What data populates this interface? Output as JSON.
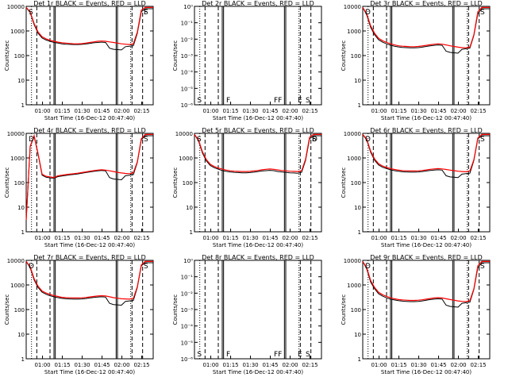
{
  "figure": {
    "xlabel": "Start Time (16-Dec-12 00:47:40)",
    "ylabel": "Counts/sec",
    "xticks": [
      "01:00",
      "01:15",
      "01:30",
      "01:45",
      "02:00",
      "02:15"
    ],
    "colors": {
      "events": "#000000",
      "lld": "#ff0000",
      "background": "#ffffff"
    }
  },
  "chart_data": [
    {
      "type": "line",
      "title": "Det 1r BLACK = Events, RED = LLD",
      "xlabel": "Start Time (16-Dec-12 00:47:40)",
      "ylabel": "Counts/sec",
      "x_unit": "minutes since 00:47:40",
      "xlim": [
        0,
        96
      ],
      "scale": "log",
      "ylim": [
        1,
        10000
      ],
      "yticks": [
        "1",
        "10",
        "100",
        "1000",
        "10000"
      ],
      "x": [
        0,
        3,
        6,
        9,
        12,
        15,
        18,
        21,
        24,
        27,
        30,
        33,
        36,
        39,
        42,
        45,
        48,
        51,
        54,
        57,
        60,
        63,
        66,
        69,
        72,
        75,
        78,
        81,
        84,
        87,
        90,
        93,
        96
      ],
      "series": [
        {
          "name": "LLD",
          "values": [
            9000,
            6000,
            2000,
            900,
            580,
            480,
            420,
            380,
            350,
            330,
            320,
            310,
            300,
            300,
            305,
            320,
            340,
            360,
            380,
            390,
            380,
            360,
            340,
            320,
            300,
            290,
            280,
            300,
            900,
            7000,
            9000,
            9000,
            9000
          ]
        },
        {
          "name": "Events",
          "values": [
            9000,
            5500,
            1800,
            800,
            520,
            430,
            380,
            340,
            320,
            300,
            290,
            285,
            280,
            280,
            285,
            295,
            310,
            330,
            340,
            350,
            340,
            200,
            180,
            175,
            170,
            230,
            240,
            250,
            800,
            6000,
            8000,
            8000,
            8000
          ]
        }
      ],
      "markers": [
        "S",
        "F",
        "S"
      ]
    },
    {
      "type": "line",
      "title": "Det 2r BLACK = Events, RED = LLD",
      "xlabel": "Start Time (16-Dec-12 00:47:40)",
      "ylabel": "Counts/sec",
      "x_unit": "minutes since 00:47:40",
      "xlim": [
        0,
        96
      ],
      "scale": "log",
      "ylim": [
        1e-06,
        1
      ],
      "yticks": [
        "10⁻⁶",
        "10⁻⁵",
        "10⁻⁴",
        "10⁻³",
        "10⁻²",
        "10⁻¹",
        "10⁰"
      ],
      "x": [],
      "series": [],
      "markers": [
        "S",
        "F",
        "FF",
        "E",
        "S"
      ]
    },
    {
      "type": "line",
      "title": "Det 3r BLACK = Events, RED = LLD",
      "xlabel": "Start Time (16-Dec-12 00:47:40)",
      "ylabel": "Counts/sec",
      "x_unit": "minutes since 00:47:40",
      "xlim": [
        0,
        96
      ],
      "scale": "log",
      "ylim": [
        1,
        10000
      ],
      "yticks": [
        "1",
        "10",
        "100",
        "1000",
        "10000"
      ],
      "x": [
        0,
        3,
        6,
        9,
        12,
        15,
        18,
        21,
        24,
        27,
        30,
        33,
        36,
        39,
        42,
        45,
        48,
        51,
        54,
        57,
        60,
        63,
        66,
        69,
        72,
        75,
        78,
        81,
        84,
        87,
        90,
        93,
        96
      ],
      "series": [
        {
          "name": "LLD",
          "values": [
            9000,
            5000,
            1600,
            800,
            500,
            400,
            340,
            300,
            270,
            250,
            240,
            235,
            230,
            230,
            235,
            245,
            260,
            275,
            290,
            300,
            290,
            270,
            250,
            235,
            220,
            210,
            205,
            220,
            700,
            6000,
            9000,
            9000,
            9000
          ]
        },
        {
          "name": "Events",
          "values": [
            9000,
            4500,
            1400,
            700,
            440,
            350,
            300,
            265,
            240,
            225,
            215,
            210,
            205,
            205,
            210,
            220,
            235,
            250,
            260,
            270,
            260,
            150,
            135,
            130,
            125,
            180,
            190,
            200,
            650,
            5000,
            8000,
            8000,
            8000
          ]
        }
      ],
      "markers": [
        "D",
        "S"
      ]
    },
    {
      "type": "line",
      "title": "Det 4r BLACK = Events, RED = LLD",
      "xlabel": "Start Time (16-Dec-12 00:47:40)",
      "ylabel": "Counts/sec",
      "x_unit": "minutes since 00:47:40",
      "xlim": [
        0,
        96
      ],
      "scale": "log",
      "ylim": [
        1,
        10000
      ],
      "yticks": [
        "1",
        "10",
        "100",
        "1000",
        "10000"
      ],
      "x": [
        0,
        3,
        6,
        9,
        12,
        15,
        18,
        21,
        24,
        27,
        30,
        33,
        36,
        39,
        42,
        45,
        48,
        51,
        54,
        57,
        60,
        63,
        66,
        69,
        72,
        75,
        78,
        81,
        84,
        87,
        90,
        93,
        96
      ],
      "series": [
        {
          "name": "LLD",
          "values": [
            3,
            3000,
            8000,
            1500,
            220,
            180,
            170,
            160,
            190,
            200,
            210,
            220,
            230,
            240,
            255,
            270,
            290,
            305,
            320,
            330,
            320,
            300,
            280,
            260,
            245,
            235,
            230,
            250,
            700,
            6000,
            9000,
            9000,
            9000
          ]
        },
        {
          "name": "Events",
          "values": [
            3,
            2800,
            7500,
            1400,
            200,
            165,
            155,
            150,
            175,
            185,
            195,
            205,
            215,
            225,
            240,
            255,
            270,
            285,
            300,
            310,
            300,
            160,
            140,
            135,
            130,
            190,
            200,
            210,
            650,
            5500,
            8000,
            8000,
            8000
          ]
        }
      ],
      "markers": [
        "D",
        "S"
      ]
    },
    {
      "type": "line",
      "title": "Det 5r BLACK = Events, RED = LLD",
      "xlabel": "Start Time (16-Dec-12 00:47:40)",
      "ylabel": "Counts/sec",
      "x_unit": "minutes since 00:47:40",
      "xlim": [
        0,
        96
      ],
      "scale": "log",
      "ylim": [
        1,
        10000
      ],
      "yticks": [
        "1",
        "10",
        "100",
        "1000",
        "10000"
      ],
      "x": [
        0,
        3,
        6,
        9,
        12,
        15,
        18,
        21,
        24,
        27,
        30,
        33,
        36,
        39,
        42,
        45,
        48,
        51,
        54,
        57,
        60,
        63,
        66,
        69,
        72,
        75,
        78,
        81,
        84,
        87,
        90,
        93,
        96
      ],
      "series": [
        {
          "name": "LLD",
          "values": [
            9000,
            5500,
            1800,
            850,
            550,
            450,
            390,
            350,
            320,
            300,
            290,
            285,
            280,
            280,
            285,
            295,
            310,
            330,
            345,
            355,
            345,
            325,
            310,
            300,
            290,
            285,
            280,
            300,
            900,
            7000,
            9000,
            9000,
            9000
          ]
        },
        {
          "name": "Events",
          "values": [
            9000,
            5000,
            1600,
            760,
            490,
            400,
            350,
            310,
            285,
            270,
            260,
            255,
            250,
            250,
            255,
            265,
            280,
            295,
            305,
            315,
            305,
            280,
            270,
            260,
            250,
            245,
            240,
            260,
            800,
            6000,
            8000,
            8000,
            8000
          ]
        }
      ],
      "markers": [
        "S",
        "F",
        "D",
        "S"
      ]
    },
    {
      "type": "line",
      "title": "Det 6r BLACK = Events, RED = LLD",
      "xlabel": "Start Time (16-Dec-12 00:47:40)",
      "ylabel": "Counts/sec",
      "x_unit": "minutes since 00:47:40",
      "xlim": [
        0,
        96
      ],
      "scale": "log",
      "ylim": [
        1,
        10000
      ],
      "yticks": [
        "1",
        "10",
        "100",
        "1000",
        "10000"
      ],
      "x": [
        0,
        3,
        6,
        9,
        12,
        15,
        18,
        21,
        24,
        27,
        30,
        33,
        36,
        39,
        42,
        45,
        48,
        51,
        54,
        57,
        60,
        63,
        66,
        69,
        72,
        75,
        78,
        81,
        84,
        87,
        90,
        93,
        96
      ],
      "series": [
        {
          "name": "LLD",
          "values": [
            9000,
            5800,
            1900,
            900,
            580,
            470,
            410,
            370,
            340,
            320,
            305,
            300,
            295,
            295,
            300,
            310,
            325,
            345,
            360,
            370,
            360,
            340,
            320,
            305,
            290,
            280,
            275,
            295,
            850,
            6500,
            9000,
            9000,
            9000
          ]
        },
        {
          "name": "Events",
          "values": [
            9000,
            5300,
            1700,
            800,
            520,
            420,
            370,
            330,
            305,
            290,
            275,
            270,
            265,
            265,
            270,
            280,
            295,
            310,
            320,
            330,
            320,
            190,
            170,
            165,
            160,
            220,
            230,
            240,
            780,
            6000,
            8000,
            8000,
            8000
          ]
        }
      ],
      "markers": [
        "D",
        "S"
      ]
    },
    {
      "type": "line",
      "title": "Det 7r BLACK = Events, RED = LLD",
      "xlabel": "Start Time (16-Dec-12 00:47:40)",
      "ylabel": "Counts/sec",
      "x_unit": "minutes since 00:47:40",
      "xlim": [
        0,
        96
      ],
      "scale": "log",
      "ylim": [
        1,
        10000
      ],
      "yticks": [
        "1",
        "10",
        "100",
        "1000",
        "10000"
      ],
      "x": [
        0,
        3,
        6,
        9,
        12,
        15,
        18,
        21,
        24,
        27,
        30,
        33,
        36,
        39,
        42,
        45,
        48,
        51,
        54,
        57,
        60,
        63,
        66,
        69,
        72,
        75,
        78,
        81,
        84,
        87,
        90,
        93,
        96
      ],
      "series": [
        {
          "name": "LLD",
          "values": [
            9000,
            5500,
            1800,
            880,
            570,
            470,
            410,
            370,
            340,
            315,
            305,
            300,
            295,
            295,
            300,
            310,
            325,
            340,
            355,
            365,
            355,
            330,
            305,
            290,
            275,
            270,
            265,
            285,
            850,
            6500,
            9000,
            9000,
            9000
          ]
        },
        {
          "name": "Events",
          "values": [
            9000,
            5000,
            1600,
            790,
            510,
            420,
            365,
            330,
            305,
            285,
            275,
            270,
            265,
            265,
            270,
            280,
            295,
            310,
            320,
            330,
            320,
            180,
            160,
            155,
            150,
            215,
            225,
            235,
            780,
            6000,
            8000,
            8000,
            8000
          ]
        }
      ],
      "markers": [
        "D",
        "S"
      ]
    },
    {
      "type": "line",
      "title": "Det 8r BLACK = Events, RED = LLD",
      "xlabel": "Start Time (16-Dec-12 00:47:40)",
      "ylabel": "Counts/sec",
      "x_unit": "minutes since 00:47:40",
      "xlim": [
        0,
        96
      ],
      "scale": "log",
      "ylim": [
        1e-06,
        1
      ],
      "yticks": [
        "10⁻⁶",
        "10⁻⁵",
        "10⁻⁴",
        "10⁻³",
        "10⁻²",
        "10⁻¹",
        "10⁰"
      ],
      "x": [],
      "series": [],
      "markers": [
        "S",
        "F",
        "FF",
        "E",
        "S"
      ]
    },
    {
      "type": "line",
      "title": "Det 9r BLACK = Events, RED = LLD",
      "xlabel": "Start Time (16-Dec-12 00:47:40)",
      "ylabel": "Counts/sec",
      "x_unit": "minutes since 00:47:40",
      "xlim": [
        0,
        96
      ],
      "scale": "log",
      "ylim": [
        1,
        10000
      ],
      "yticks": [
        "1",
        "10",
        "100",
        "1000",
        "10000"
      ],
      "x": [
        0,
        3,
        6,
        9,
        12,
        15,
        18,
        21,
        24,
        27,
        30,
        33,
        36,
        39,
        42,
        45,
        48,
        51,
        54,
        57,
        60,
        63,
        66,
        69,
        72,
        75,
        78,
        81,
        84,
        87,
        90,
        93,
        96
      ],
      "series": [
        {
          "name": "LLD",
          "values": [
            9000,
            5000,
            1500,
            780,
            500,
            400,
            340,
            300,
            275,
            255,
            245,
            240,
            235,
            235,
            240,
            250,
            265,
            280,
            295,
            305,
            295,
            275,
            255,
            240,
            225,
            215,
            210,
            230,
            700,
            6000,
            9000,
            9000,
            9000
          ]
        },
        {
          "name": "Events",
          "values": [
            9000,
            4500,
            1300,
            700,
            440,
            350,
            300,
            265,
            245,
            230,
            220,
            215,
            210,
            210,
            215,
            225,
            240,
            255,
            265,
            275,
            265,
            150,
            135,
            130,
            125,
            180,
            190,
            200,
            650,
            5000,
            8000,
            8000,
            8000
          ]
        }
      ],
      "markers": [
        "D",
        "S"
      ]
    }
  ]
}
